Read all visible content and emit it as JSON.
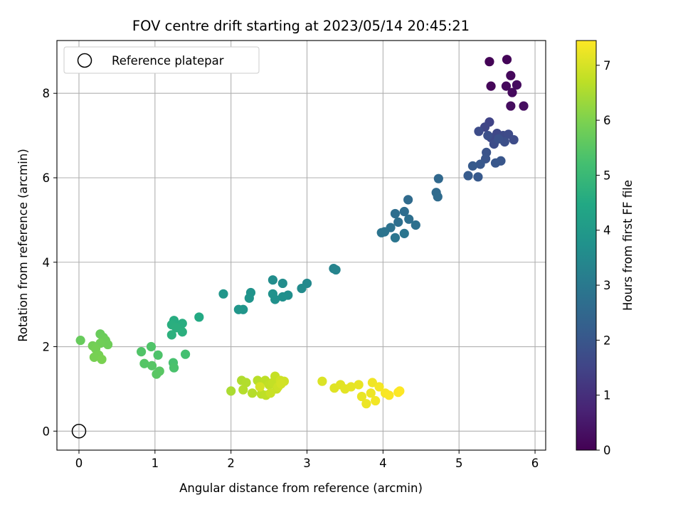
{
  "chart_data": {
    "type": "scatter",
    "title": "FOV centre drift starting at 2023/05/14 20:45:21",
    "xlabel": "Angular distance from reference (arcmin)",
    "ylabel": "Rotation from reference (arcmin)",
    "xlim": [
      -0.29,
      6.14
    ],
    "ylim": [
      -0.45,
      9.25
    ],
    "xticks": [
      "0",
      "1",
      "2",
      "3",
      "4",
      "5",
      "6"
    ],
    "yticks": [
      "0",
      "2",
      "4",
      "6",
      "8"
    ],
    "grid": true,
    "legend": {
      "position": "top-left",
      "entries": [
        "Reference platepar"
      ]
    },
    "reference_point": {
      "x": 0.0,
      "y": 0.0,
      "marker": "open-circle",
      "label": "Reference platepar"
    },
    "colorbar": {
      "label": "Hours from first FF file",
      "range": [
        0,
        7.45
      ],
      "ticks": [
        "0",
        "1",
        "2",
        "3",
        "4",
        "5",
        "6",
        "7"
      ],
      "colormap": "viridis"
    },
    "points": [
      [
        5.4,
        8.75,
        0.05
      ],
      [
        5.63,
        8.8,
        0.08
      ],
      [
        5.42,
        8.17,
        0.12
      ],
      [
        5.68,
        8.42,
        0.15
      ],
      [
        5.62,
        8.17,
        0.18
      ],
      [
        5.7,
        8.02,
        0.2
      ],
      [
        5.76,
        8.2,
        0.22
      ],
      [
        5.68,
        7.7,
        0.25
      ],
      [
        5.85,
        7.7,
        0.28
      ],
      [
        5.4,
        7.32,
        1.5
      ],
      [
        5.34,
        7.2,
        1.55
      ],
      [
        5.5,
        7.05,
        1.6
      ],
      [
        5.42,
        6.95,
        1.62
      ],
      [
        5.58,
        7.0,
        1.65
      ],
      [
        5.65,
        7.03,
        1.68
      ],
      [
        5.72,
        6.9,
        1.7
      ],
      [
        5.26,
        7.1,
        1.72
      ],
      [
        5.46,
        6.8,
        1.75
      ],
      [
        5.6,
        6.85,
        1.8
      ],
      [
        5.38,
        7.0,
        1.82
      ],
      [
        5.52,
        6.92,
        1.85
      ],
      [
        5.36,
        6.6,
        1.9
      ],
      [
        5.35,
        6.45,
        1.95
      ],
      [
        5.55,
        6.4,
        2.0
      ],
      [
        5.48,
        6.35,
        2.02
      ],
      [
        5.28,
        6.32,
        2.05
      ],
      [
        5.25,
        6.02,
        2.08
      ],
      [
        5.18,
        6.28,
        2.1
      ],
      [
        5.12,
        6.05,
        2.12
      ],
      [
        4.73,
        5.98,
        2.5
      ],
      [
        4.7,
        5.65,
        2.55
      ],
      [
        4.72,
        5.55,
        2.58
      ],
      [
        4.33,
        5.48,
        2.6
      ],
      [
        4.28,
        5.2,
        2.65
      ],
      [
        4.16,
        5.15,
        2.68
      ],
      [
        4.34,
        5.02,
        2.7
      ],
      [
        4.2,
        4.95,
        2.72
      ],
      [
        4.43,
        4.88,
        2.75
      ],
      [
        4.1,
        4.82,
        2.8
      ],
      [
        4.02,
        4.72,
        2.82
      ],
      [
        3.98,
        4.7,
        2.85
      ],
      [
        4.28,
        4.68,
        2.88
      ],
      [
        4.16,
        4.58,
        2.9
      ],
      [
        3.35,
        3.85,
        3.3
      ],
      [
        3.38,
        3.82,
        3.35
      ],
      [
        3.0,
        3.5,
        3.5
      ],
      [
        2.93,
        3.38,
        3.55
      ],
      [
        2.68,
        3.5,
        3.6
      ],
      [
        2.55,
        3.58,
        3.62
      ],
      [
        2.75,
        3.22,
        3.65
      ],
      [
        2.68,
        3.18,
        3.7
      ],
      [
        2.58,
        3.12,
        3.72
      ],
      [
        2.55,
        3.25,
        3.75
      ],
      [
        2.26,
        3.28,
        3.8
      ],
      [
        2.24,
        3.15,
        3.82
      ],
      [
        2.16,
        2.88,
        3.85
      ],
      [
        2.1,
        2.88,
        3.88
      ],
      [
        1.9,
        3.25,
        3.9
      ],
      [
        1.58,
        2.7,
        4.5
      ],
      [
        1.25,
        2.62,
        4.6
      ],
      [
        1.36,
        2.55,
        4.62
      ],
      [
        1.22,
        2.52,
        4.65
      ],
      [
        1.28,
        2.45,
        4.68
      ],
      [
        1.36,
        2.35,
        4.7
      ],
      [
        1.22,
        2.28,
        4.72
      ],
      [
        1.4,
        1.82,
        5.2
      ],
      [
        1.24,
        1.62,
        5.25
      ],
      [
        1.25,
        1.5,
        5.3
      ],
      [
        1.04,
        1.8,
        5.35
      ],
      [
        0.95,
        2.0,
        5.38
      ],
      [
        0.82,
        1.88,
        5.4
      ],
      [
        0.86,
        1.6,
        5.45
      ],
      [
        0.96,
        1.55,
        5.48
      ],
      [
        1.06,
        1.42,
        5.5
      ],
      [
        1.02,
        1.35,
        5.52
      ],
      [
        0.02,
        2.15,
        5.7
      ],
      [
        0.28,
        2.3,
        5.72
      ],
      [
        0.32,
        2.22,
        5.75
      ],
      [
        0.35,
        2.15,
        5.78
      ],
      [
        0.38,
        2.05,
        5.8
      ],
      [
        0.28,
        2.08,
        5.82
      ],
      [
        0.18,
        2.02,
        5.85
      ],
      [
        0.22,
        1.95,
        5.88
      ],
      [
        0.26,
        1.8,
        5.9
      ],
      [
        0.2,
        1.75,
        5.92
      ],
      [
        0.3,
        1.7,
        5.95
      ],
      [
        2.0,
        0.95,
        6.5
      ],
      [
        2.14,
        1.2,
        6.55
      ],
      [
        2.2,
        1.15,
        6.58
      ],
      [
        2.16,
        0.98,
        6.6
      ],
      [
        2.28,
        0.9,
        6.62
      ],
      [
        2.35,
        1.2,
        6.65
      ],
      [
        2.4,
        0.88,
        6.68
      ],
      [
        2.45,
        1.2,
        6.7
      ],
      [
        2.46,
        0.85,
        6.72
      ],
      [
        2.5,
        1.1,
        6.75
      ],
      [
        2.55,
        1.15,
        6.78
      ],
      [
        2.58,
        1.3,
        6.8
      ],
      [
        2.6,
        1.0,
        6.82
      ],
      [
        2.52,
        0.9,
        6.85
      ],
      [
        2.62,
        1.05,
        6.88
      ],
      [
        2.65,
        1.2,
        6.9
      ],
      [
        2.7,
        1.18,
        6.92
      ],
      [
        2.66,
        1.12,
        6.95
      ],
      [
        2.38,
        1.05,
        6.98
      ],
      [
        3.2,
        1.18,
        7.05
      ],
      [
        3.36,
        1.02,
        7.1
      ],
      [
        3.44,
        1.1,
        7.12
      ],
      [
        3.5,
        1.0,
        7.15
      ],
      [
        3.58,
        1.05,
        7.18
      ],
      [
        3.68,
        1.1,
        7.2
      ],
      [
        3.72,
        0.82,
        7.22
      ],
      [
        3.78,
        0.65,
        7.25
      ],
      [
        3.84,
        0.9,
        7.28
      ],
      [
        3.86,
        1.15,
        7.3
      ],
      [
        3.9,
        0.72,
        7.32
      ],
      [
        3.95,
        1.05,
        7.35
      ],
      [
        4.03,
        0.9,
        7.38
      ],
      [
        4.08,
        0.85,
        7.4
      ],
      [
        4.2,
        0.92,
        7.42
      ],
      [
        4.22,
        0.95,
        7.45
      ]
    ]
  }
}
